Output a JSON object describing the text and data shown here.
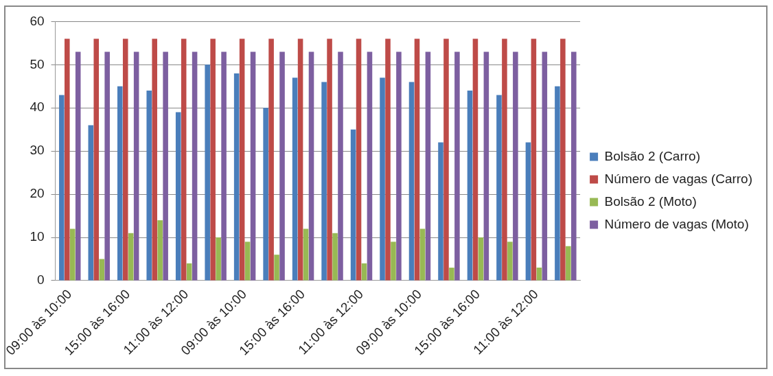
{
  "chart_data": {
    "type": "bar",
    "categories": [
      "09:00 às 10:00",
      null,
      "15:00 às 16:00",
      null,
      "11:00 às 12:00",
      null,
      "09:00 às 10:00",
      null,
      "15:00 às 16:00",
      null,
      "11:00 às 12:00",
      null,
      "09:00 às 10:00",
      null,
      "15:00 às 16:00",
      null,
      "11:00 às 12:00",
      null
    ],
    "series": [
      {
        "name": "Bolsão 2 (Carro)",
        "color": "#4a7ebb",
        "values": [
          43,
          36,
          45,
          44,
          39,
          50,
          48,
          40,
          47,
          46,
          35,
          47,
          46,
          32,
          44,
          43,
          32,
          45
        ]
      },
      {
        "name": "Número de vagas (Carro)",
        "color": "#be4b48",
        "values": [
          56,
          56,
          56,
          56,
          56,
          56,
          56,
          56,
          56,
          56,
          56,
          56,
          56,
          56,
          56,
          56,
          56,
          56
        ]
      },
      {
        "name": "Bolsão 2 (Moto)",
        "color": "#98b954",
        "values": [
          12,
          5,
          11,
          14,
          4,
          10,
          9,
          6,
          12,
          11,
          4,
          9,
          12,
          3,
          10,
          9,
          3,
          8
        ]
      },
      {
        "name": "Número de vagas (Moto)",
        "color": "#7d5fa0",
        "values": [
          53,
          53,
          53,
          53,
          53,
          53,
          53,
          53,
          53,
          53,
          53,
          53,
          53,
          53,
          53,
          53,
          53,
          53
        ]
      }
    ],
    "ylim": [
      0,
      60
    ],
    "yticks": [
      0,
      10,
      20,
      30,
      40,
      50,
      60
    ],
    "grid": "y",
    "legend": "right"
  }
}
